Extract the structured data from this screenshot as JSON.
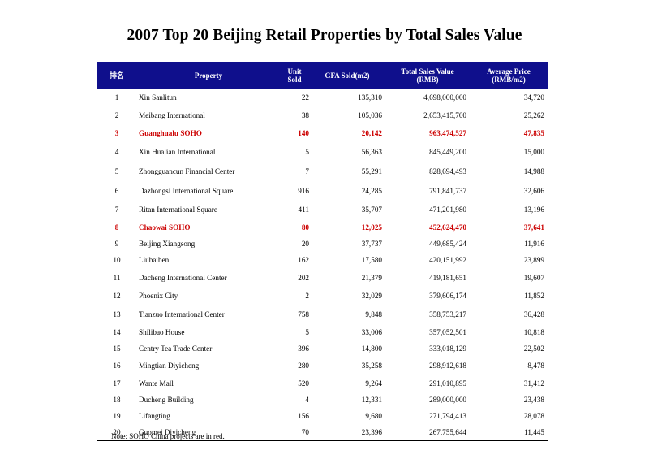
{
  "title": "2007 Top 20 Beijing Retail Properties by Total Sales Value",
  "header": {
    "rank": "排名",
    "property": "Property",
    "unit_sold_1": "Unit",
    "unit_sold_2": "Sold",
    "gfa": "GFA Sold(m2)",
    "total_1": "Total Sales Value",
    "total_2": "(RMB)",
    "avg_1": "Average Price",
    "avg_2": "(RMB/m2)"
  },
  "rows": [
    {
      "rank": "1",
      "property": "Xin Sanlitun",
      "units": "22",
      "gfa": "135,310",
      "total": "4,698,000,000",
      "avg": "34,720",
      "highlight": false
    },
    {
      "rank": "2",
      "property": "Meibang International",
      "units": "38",
      "gfa": "105,036",
      "total": "2,653,415,700",
      "avg": "25,262",
      "highlight": false
    },
    {
      "rank": "3",
      "property": "Guanghualu SOHO",
      "units": "140",
      "gfa": "20,142",
      "total": "963,474,527",
      "avg": "47,835",
      "highlight": true
    },
    {
      "rank": "4",
      "property": "Xin Hualian International",
      "units": "5",
      "gfa": "56,363",
      "total": "845,449,200",
      "avg": "15,000",
      "highlight": false
    },
    {
      "rank": "5",
      "property": "Zhongguancun Financial Center",
      "units": "7",
      "gfa": "55,291",
      "total": "828,694,493",
      "avg": "14,988",
      "highlight": false
    },
    {
      "rank": "6",
      "property": "Dazhongsi International Square",
      "units": "916",
      "gfa": "24,285",
      "total": "791,841,737",
      "avg": "32,606",
      "highlight": false
    },
    {
      "rank": "7",
      "property": "Ritan International Square",
      "units": "411",
      "gfa": "35,707",
      "total": "471,201,980",
      "avg": "13,196",
      "highlight": false
    },
    {
      "rank": "8",
      "property": "Chaowai SOHO",
      "units": "80",
      "gfa": "12,025",
      "total": "452,624,470",
      "avg": "37,641",
      "highlight": true
    },
    {
      "rank": "9",
      "property": "Beijing Xiangsong",
      "units": "20",
      "gfa": "37,737",
      "total": "449,685,424",
      "avg": "11,916",
      "highlight": false
    },
    {
      "rank": "10",
      "property": "Liubaiben",
      "units": "162",
      "gfa": "17,580",
      "total": "420,151,992",
      "avg": "23,899",
      "highlight": false
    },
    {
      "rank": "11",
      "property": "Dacheng International Center",
      "units": "202",
      "gfa": "21,379",
      "total": "419,181,651",
      "avg": "19,607",
      "highlight": false
    },
    {
      "rank": "12",
      "property": "Phoenix City",
      "units": "2",
      "gfa": "32,029",
      "total": "379,606,174",
      "avg": "11,852",
      "highlight": false
    },
    {
      "rank": "13",
      "property": "Tianzuo International  Center",
      "units": "758",
      "gfa": "9,848",
      "total": "358,753,217",
      "avg": "36,428",
      "highlight": false
    },
    {
      "rank": "14",
      "property": "Shilibao House",
      "units": "5",
      "gfa": "33,006",
      "total": "357,052,501",
      "avg": "10,818",
      "highlight": false
    },
    {
      "rank": "15",
      "property": "Centry Tea Trade Center",
      "units": "396",
      "gfa": "14,800",
      "total": "333,018,129",
      "avg": "22,502",
      "highlight": false
    },
    {
      "rank": "16",
      "property": "Mingtian Diyicheng",
      "units": "280",
      "gfa": "35,258",
      "total": "298,912,618",
      "avg": "8,478",
      "highlight": false
    },
    {
      "rank": "17",
      "property": "Wante Mall",
      "units": "520",
      "gfa": "9,264",
      "total": "291,010,895",
      "avg": "31,412",
      "highlight": false
    },
    {
      "rank": "18",
      "property": "Ducheng Building",
      "units": "4",
      "gfa": "12,331",
      "total": "289,000,000",
      "avg": "23,438",
      "highlight": false
    },
    {
      "rank": "19",
      "property": "Lifangting",
      "units": "156",
      "gfa": "9,680",
      "total": "271,794,413",
      "avg": "28,078",
      "highlight": false
    },
    {
      "rank": "20",
      "property": "Guomei Diyicheng",
      "units": "70",
      "gfa": "23,396",
      "total": "267,755,644",
      "avg": "11,445",
      "highlight": false
    }
  ],
  "note": "Note: SOHO China  projects are in red.",
  "colors": {
    "header_bg": "#0f0f8c",
    "highlight": "#cc0000"
  }
}
